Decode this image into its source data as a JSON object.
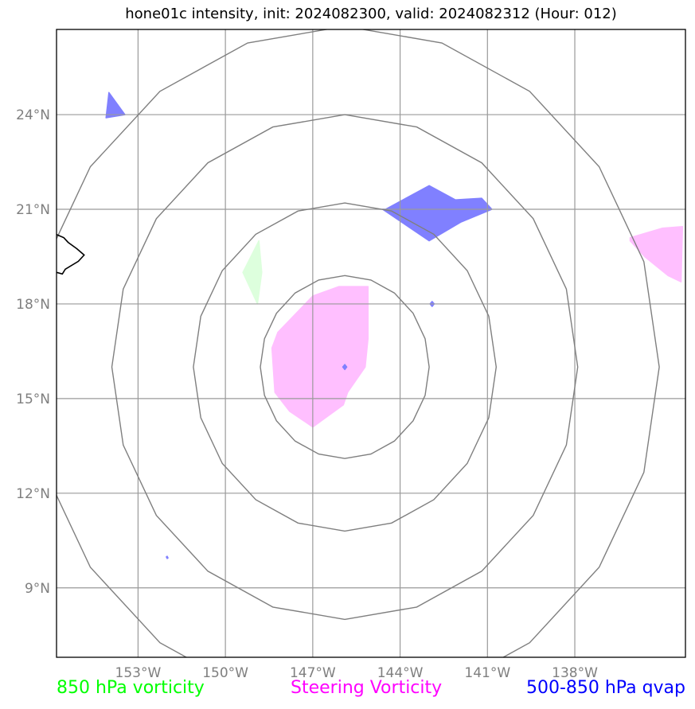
{
  "title": "hone01c intensity, init: 2024082300, valid: 2024082312 (Hour: 012)",
  "map": {
    "projection": "lat-lon",
    "lon_range": [
      -155.8,
      -134.2
    ],
    "lat_range": [
      6.8,
      26.7
    ],
    "grid": true,
    "lon_ticks": [
      {
        "value": -153,
        "label": "153°W"
      },
      {
        "value": -150,
        "label": "150°W"
      },
      {
        "value": -147,
        "label": "147°W"
      },
      {
        "value": -144,
        "label": "144°W"
      },
      {
        "value": -141,
        "label": "141°W"
      },
      {
        "value": -138,
        "label": "138°W"
      }
    ],
    "lat_ticks": [
      {
        "value": 24,
        "label": "24°N"
      },
      {
        "value": 21,
        "label": "21°N"
      },
      {
        "value": 18,
        "label": "18°N"
      },
      {
        "value": 15,
        "label": "15°N"
      },
      {
        "value": 12,
        "label": "12°N"
      },
      {
        "value": 9,
        "label": "9°N"
      }
    ],
    "range_rings": {
      "center": {
        "lon": -145.9,
        "lat": 16.0
      },
      "radii_deg": [
        2.9,
        5.2,
        8.0,
        10.8
      ],
      "color": "#7f7f7f"
    },
    "coastline": {
      "name": "Hawaii",
      "color": "#000000",
      "points": [
        [
          -155.8,
          20.2
        ],
        [
          -155.55,
          20.1
        ],
        [
          -155.4,
          19.95
        ],
        [
          -155.1,
          19.75
        ],
        [
          -154.85,
          19.55
        ],
        [
          -155.05,
          19.35
        ],
        [
          -155.5,
          19.1
        ],
        [
          -155.6,
          18.95
        ],
        [
          -155.8,
          19.0
        ]
      ]
    },
    "fields": [
      {
        "name": "850 hPa vorticity",
        "color": "#ddffdd",
        "polygons": [
          [
            [
              -149.4,
              19.0
            ],
            [
              -148.85,
              20.0
            ],
            [
              -148.75,
              19.0
            ],
            [
              -148.9,
              18.0
            ]
          ]
        ]
      },
      {
        "name": "Steering Vorticity",
        "color": "#ffbfff",
        "polygons": [
          [
            [
              -147.0,
              18.25
            ],
            [
              -146.1,
              18.55
            ],
            [
              -145.1,
              18.55
            ],
            [
              -145.1,
              16.9
            ],
            [
              -145.2,
              16.0
            ],
            [
              -145.8,
              15.2
            ],
            [
              -145.95,
              14.8
            ],
            [
              -147.0,
              14.1
            ],
            [
              -147.8,
              14.6
            ],
            [
              -148.3,
              15.2
            ],
            [
              -148.4,
              16.6
            ],
            [
              -148.2,
              17.1
            ]
          ],
          [
            [
              -136.1,
              20.1
            ],
            [
              -135.0,
              20.4
            ],
            [
              -134.3,
              20.45
            ],
            [
              -134.35,
              18.7
            ],
            [
              -134.8,
              18.9
            ],
            [
              -135.6,
              19.5
            ],
            [
              -136.1,
              20.0
            ]
          ]
        ]
      },
      {
        "name": "500-850 hPa qvap",
        "color": "#8080ff",
        "polygons": [
          [
            [
              -144.5,
              21.0
            ],
            [
              -143.0,
              21.75
            ],
            [
              -142.1,
              21.3
            ],
            [
              -141.2,
              21.35
            ],
            [
              -140.85,
              21.0
            ],
            [
              -141.9,
              20.6
            ],
            [
              -143.0,
              20.0
            ],
            [
              -144.6,
              21.0
            ]
          ],
          [
            [
              -154.0,
              24.7
            ],
            [
              -153.45,
              24.0
            ],
            [
              -154.1,
              23.9
            ],
            [
              -154.05,
              24.3
            ]
          ],
          [
            [
              -145.9,
              16.08
            ],
            [
              -145.83,
              16.0
            ],
            [
              -145.9,
              15.92
            ],
            [
              -145.97,
              16.0
            ]
          ],
          [
            [
              -142.9,
              18.08
            ],
            [
              -142.83,
              18.0
            ],
            [
              -142.9,
              17.92
            ],
            [
              -142.97,
              18.0
            ]
          ],
          [
            [
              -152.0,
              10.0
            ],
            [
              -151.97,
              9.95
            ],
            [
              -152.0,
              9.93
            ],
            [
              -152.03,
              9.98
            ]
          ]
        ]
      }
    ]
  },
  "legend": {
    "vort850": {
      "label": "850 hPa vorticity",
      "color": "#00ff00"
    },
    "steering": {
      "label": "Steering Vorticity",
      "color": "#ff00ff"
    },
    "qvap": {
      "label": "500-850 hPa qvap",
      "color": "#0000ff"
    }
  }
}
